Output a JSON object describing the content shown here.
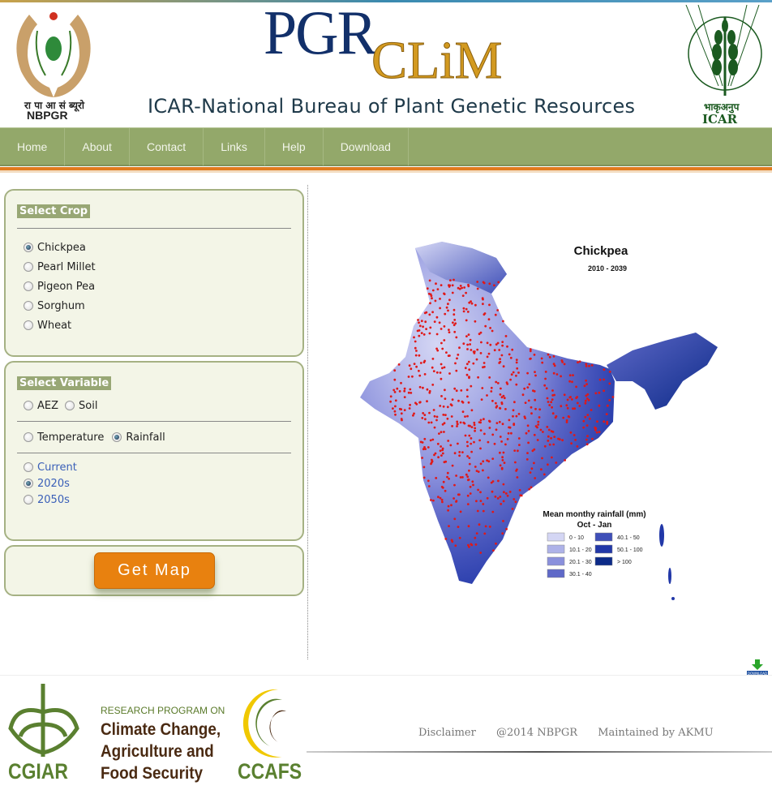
{
  "header": {
    "left_logo": {
      "hindi": "रा पा आ सं ब्यूरो",
      "name": "NBPGR"
    },
    "title_part1": "PGR",
    "title_part2": "CLiM",
    "subtitle": "ICAR-National Bureau of Plant Genetic Resources",
    "right_logo": {
      "hindi": "भाकृअनुप",
      "name": "ICAR"
    }
  },
  "nav": {
    "items": [
      "Home",
      "About",
      "Contact",
      "Links",
      "Help",
      "Download"
    ]
  },
  "crop_panel": {
    "title": "Select Crop",
    "options": [
      {
        "label": "Chickpea",
        "checked": true
      },
      {
        "label": "Pearl Millet",
        "checked": false
      },
      {
        "label": "Pigeon Pea",
        "checked": false
      },
      {
        "label": "Sorghum",
        "checked": false
      },
      {
        "label": "Wheat",
        "checked": false
      }
    ]
  },
  "variable_panel": {
    "title": "Select Variable",
    "group1": [
      {
        "label": "AEZ",
        "checked": false
      },
      {
        "label": "Soil",
        "checked": false
      }
    ],
    "group2": [
      {
        "label": "Temperature",
        "checked": false
      },
      {
        "label": "Rainfall",
        "checked": true
      }
    ],
    "period": [
      {
        "label": "Current",
        "checked": false
      },
      {
        "label": "2020s",
        "checked": true
      },
      {
        "label": "2050s",
        "checked": false
      }
    ]
  },
  "get_map_label": "Get Map",
  "map": {
    "title": "Chickpea",
    "period": "2010 - 2039",
    "legend_title": "Mean monthy rainfall (mm)",
    "legend_subtitle": "Oct - Jan",
    "legend": [
      {
        "label": "0 - 10",
        "color": "#d4d6f4"
      },
      {
        "label": "10.1 - 20",
        "color": "#aeb2e8"
      },
      {
        "label": "20.1 - 30",
        "color": "#8a90dc"
      },
      {
        "label": "30.1 - 40",
        "color": "#5f69c8"
      },
      {
        "label": "40.1 - 50",
        "color": "#3f4fb8"
      },
      {
        "label": "50.1 - 100",
        "color": "#2238a8"
      },
      {
        "label": "> 100",
        "color": "#0c2a88"
      }
    ],
    "dot_color": "#e01818"
  },
  "download_icon_label": "DOWNLOAD",
  "footer": {
    "cgiar": "CGIAR",
    "program_line1": "RESEARCH PROGRAM ON",
    "program_lines": [
      "Climate Change,",
      "Agriculture and",
      "Food Security"
    ],
    "ccafs": "CCAFS",
    "links": [
      "Disclaimer",
      "@2014 NBPGR",
      "Maintained by AKMU"
    ]
  },
  "colors": {
    "nav": "#93a86a",
    "accent": "#e8810f",
    "panel_bg": "#f3f5e7"
  }
}
